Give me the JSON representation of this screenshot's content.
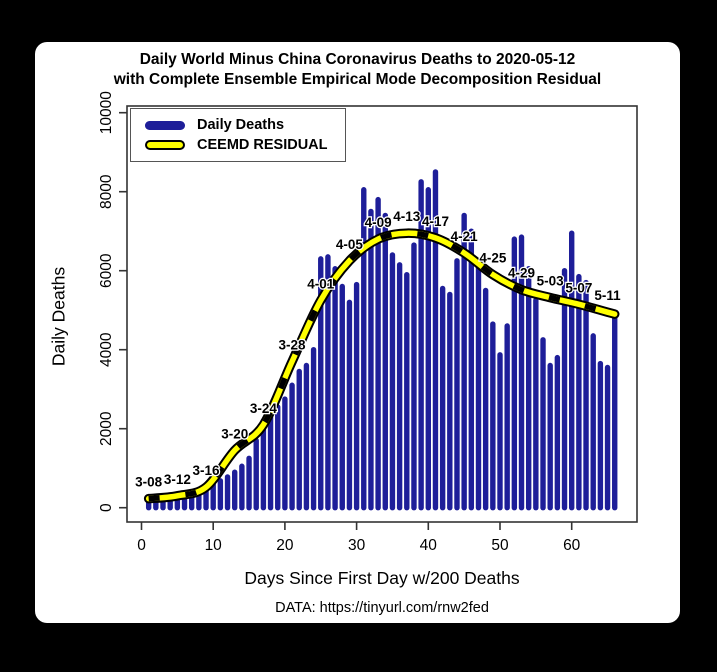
{
  "title": {
    "line1": "Daily World Minus China Coronavirus Deaths to 2020-05-12",
    "line2": "with Complete Ensemble Empirical Mode Decomposition Residual"
  },
  "legend": {
    "items": [
      {
        "label": "Daily Deaths",
        "color": "#1e1e99"
      },
      {
        "label": "CEEMD RESIDUAL",
        "color": "#ffff00",
        "outline": "#000000"
      }
    ]
  },
  "footer": {
    "xlabel": "Days Since First Day w/200 Deaths",
    "source": "DATA: https://tinyurl.com/rnw2fed"
  },
  "colors": {
    "bar": "#1e1e99",
    "residual_fill": "#ffff00",
    "residual_outline": "#000000",
    "axis": "#333333",
    "background": "#000000",
    "card": "#ffffff"
  },
  "chart_data": {
    "type": "bar",
    "title": "Daily World Minus China Coronavirus Deaths to 2020-05-12 with Complete Ensemble Empirical Mode Decomposition Residual",
    "xlabel": "Days Since First Day w/200 Deaths",
    "ylabel": "Daily Deaths",
    "xlim": [
      0,
      69
    ],
    "ylim": [
      0,
      10000
    ],
    "x_ticks": [
      0,
      10,
      20,
      30,
      40,
      50,
      60
    ],
    "y_ticks": [
      0,
      2000,
      4000,
      6000,
      8000,
      10000
    ],
    "grid": false,
    "legend_position": "top-left",
    "x": [
      1,
      2,
      3,
      4,
      5,
      6,
      7,
      8,
      9,
      10,
      11,
      12,
      13,
      14,
      15,
      16,
      17,
      18,
      19,
      20,
      21,
      22,
      23,
      24,
      25,
      26,
      27,
      28,
      29,
      30,
      31,
      32,
      33,
      34,
      35,
      36,
      37,
      38,
      39,
      40,
      41,
      42,
      43,
      44,
      45,
      46,
      47,
      48,
      49,
      50,
      51,
      52,
      53,
      54,
      55,
      56,
      57,
      58,
      59,
      60,
      61,
      62,
      63,
      64,
      65,
      66
    ],
    "series": [
      {
        "name": "Daily Deaths",
        "type": "bar",
        "color": "#1e1e99",
        "values": [
          230,
          240,
          260,
          280,
          300,
          340,
          390,
          450,
          520,
          590,
          680,
          780,
          900,
          1050,
          1250,
          1700,
          2200,
          2400,
          2550,
          2750,
          3100,
          3450,
          3600,
          4000,
          6300,
          6350,
          6050,
          5600,
          5200,
          5650,
          8050,
          7500,
          7800,
          7400,
          6400,
          6150,
          5900,
          6650,
          8250,
          8050,
          8500,
          5550,
          5400,
          6250,
          7400,
          7000,
          6200,
          5500,
          4650,
          3870,
          4600,
          6800,
          6850,
          6050,
          5250,
          4250,
          3600,
          3800,
          6000,
          6950,
          5850,
          5700,
          4350,
          3650,
          3550,
          4900
        ]
      },
      {
        "name": "CEEMD RESIDUAL",
        "type": "line",
        "color": "#ffff00",
        "outline": "#000000",
        "dashed_overlay": "#000000",
        "x": [
          1,
          5,
          9,
          13,
          17,
          21,
          25,
          29,
          33,
          37,
          41,
          45,
          49,
          53,
          57,
          61,
          65,
          66
        ],
        "values": [
          230,
          300,
          520,
          1450,
          2100,
          3700,
          5250,
          6250,
          6800,
          6950,
          6830,
          6450,
          5900,
          5520,
          5320,
          5150,
          4950,
          4900
        ]
      }
    ],
    "point_labels": [
      {
        "x": 1,
        "label": "3-08"
      },
      {
        "x": 5,
        "label": "3-12"
      },
      {
        "x": 9,
        "label": "3-16"
      },
      {
        "x": 13,
        "label": "3-20"
      },
      {
        "x": 17,
        "label": "3-24"
      },
      {
        "x": 21,
        "label": "3-28"
      },
      {
        "x": 25,
        "label": "4-01"
      },
      {
        "x": 29,
        "label": "4-05"
      },
      {
        "x": 33,
        "label": "4-09"
      },
      {
        "x": 37,
        "label": "4-13"
      },
      {
        "x": 41,
        "label": "4-17"
      },
      {
        "x": 45,
        "label": "4-21"
      },
      {
        "x": 49,
        "label": "4-25"
      },
      {
        "x": 53,
        "label": "4-29"
      },
      {
        "x": 57,
        "label": "5-03"
      },
      {
        "x": 61,
        "label": "5-07"
      },
      {
        "x": 65,
        "label": "5-11"
      }
    ]
  }
}
